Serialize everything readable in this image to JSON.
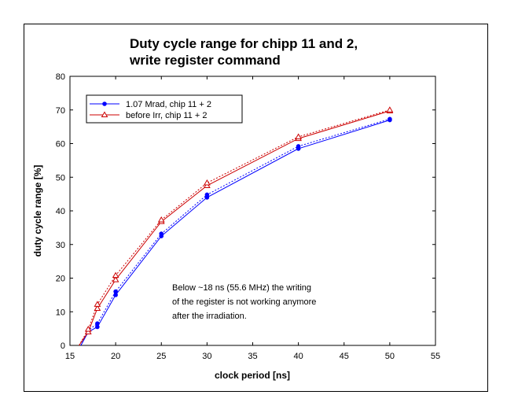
{
  "chart_data": {
    "type": "line",
    "title": [
      "Duty cycle range for chipp 11 and 2,",
      "write register command"
    ],
    "xlabel": "clock period   [ns]",
    "ylabel": "duty cycle range   [%]",
    "xlim": [
      15,
      55
    ],
    "ylim": [
      0,
      80
    ],
    "xticks": [
      15,
      20,
      25,
      30,
      35,
      40,
      45,
      50,
      55
    ],
    "yticks": [
      0,
      10,
      20,
      30,
      40,
      50,
      60,
      70,
      80
    ],
    "grid": false,
    "legend_position": "top-left",
    "series": [
      {
        "name": "1.07 Mrad, chip 11 + 2",
        "color": "#0000ff",
        "marker": "filled-circle",
        "points_a": [
          [
            16.2,
            0
          ],
          [
            17,
            4
          ],
          [
            18,
            5.5
          ],
          [
            20,
            15
          ],
          [
            25,
            32.5
          ],
          [
            30,
            44
          ],
          [
            40,
            58.5
          ],
          [
            50,
            67
          ]
        ],
        "points_b": [
          [
            16.2,
            0
          ],
          [
            17,
            4.5
          ],
          [
            18,
            6.5
          ],
          [
            20,
            16
          ],
          [
            25,
            33.2
          ],
          [
            30,
            44.8
          ],
          [
            40,
            59.2
          ],
          [
            50,
            67.3
          ]
        ]
      },
      {
        "name": "before Irr, chip 11 + 2",
        "color": "#cc0000",
        "marker": "open-triangle",
        "points_a": [
          [
            16,
            0
          ],
          [
            17,
            4
          ],
          [
            18,
            11
          ],
          [
            20,
            19.5
          ],
          [
            25,
            36.8
          ],
          [
            30,
            47.5
          ],
          [
            40,
            61.5
          ],
          [
            50,
            69.7
          ]
        ],
        "points_b": [
          [
            16,
            0
          ],
          [
            17,
            4.8
          ],
          [
            18,
            12.2
          ],
          [
            20,
            20.8
          ],
          [
            25,
            37.3
          ],
          [
            30,
            48.3
          ],
          [
            40,
            62
          ],
          [
            50,
            70
          ]
        ]
      }
    ],
    "annotation": [
      "Below ~18 ns (55.6 MHz) the writing",
      "of the register is not working anymore",
      "after the irradiation."
    ]
  }
}
